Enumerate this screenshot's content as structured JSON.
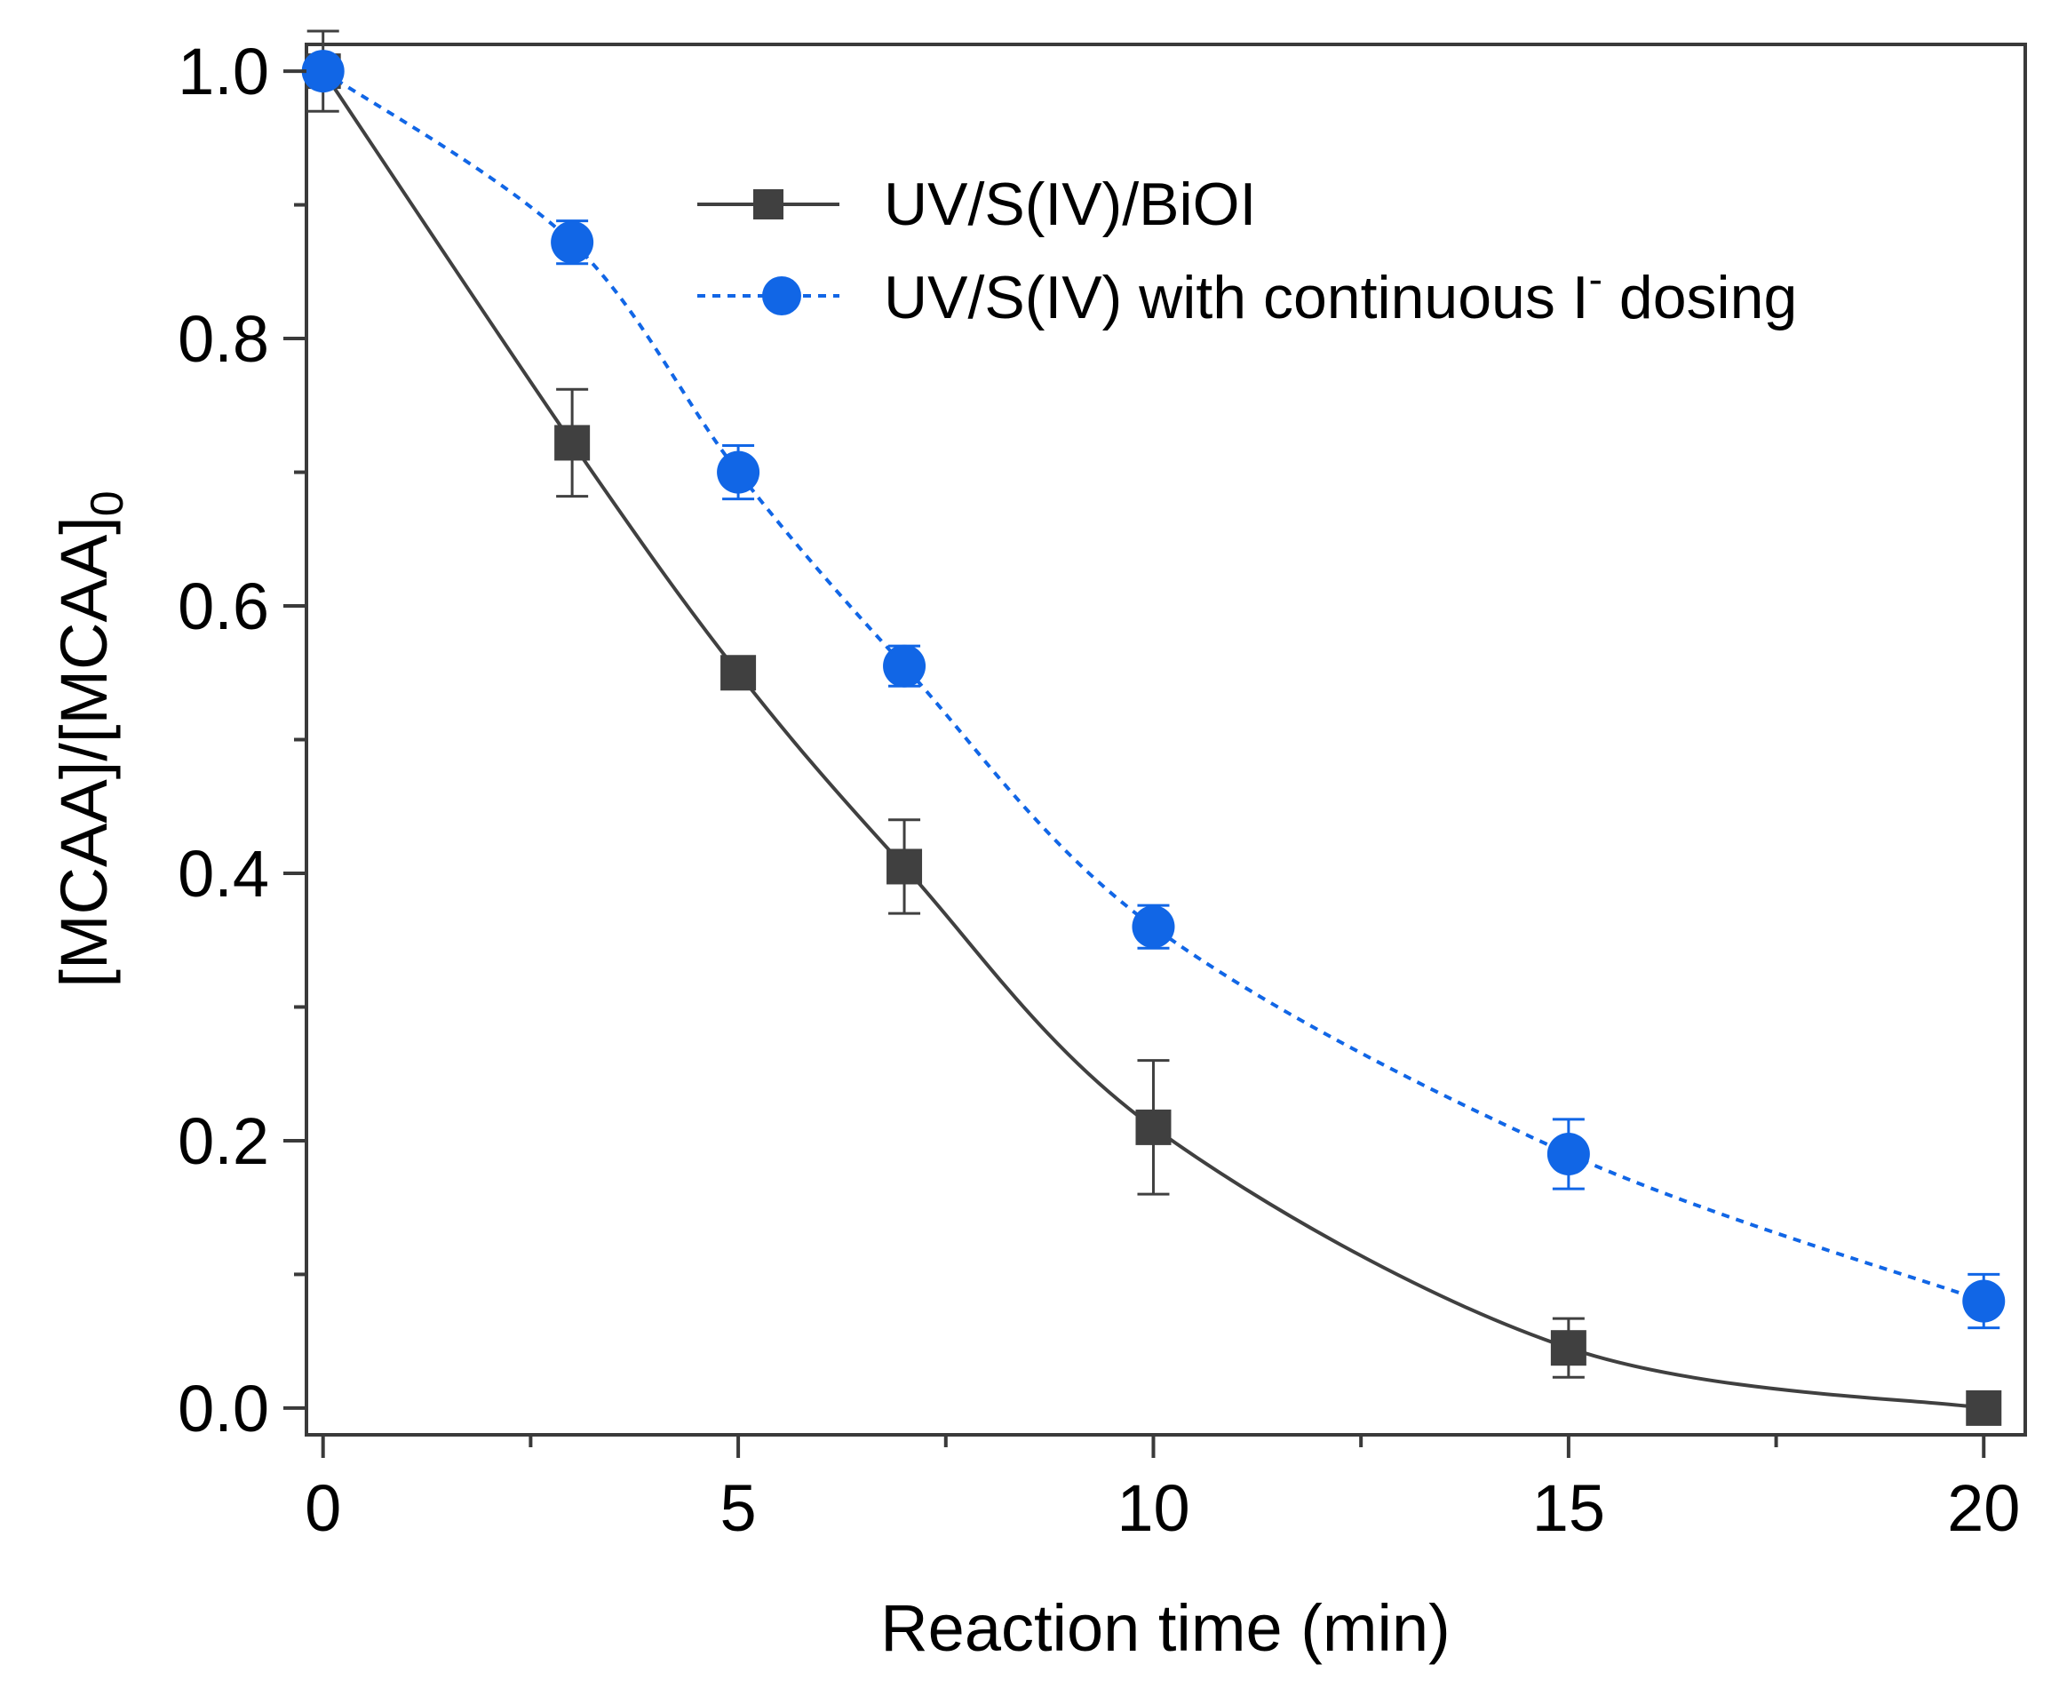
{
  "chart_data": {
    "type": "line",
    "title": "",
    "xlabel": "Reaction time (min)",
    "ylabel": {
      "main": "[MCAA]/[MCAA]",
      "subscript": "0"
    },
    "xlim": [
      -0.2,
      20.5
    ],
    "ylim": [
      -0.02,
      1.02
    ],
    "xticks": [
      0,
      5,
      10,
      15,
      20
    ],
    "xtick_labels": [
      "0",
      "5",
      "10",
      "15",
      "20"
    ],
    "yticks": [
      0.0,
      0.2,
      0.4,
      0.6,
      0.8,
      1.0
    ],
    "ytick_labels": [
      "0.0",
      "0.2",
      "0.4",
      "0.6",
      "0.8",
      "1.0"
    ],
    "grid": false,
    "legend_position": "top-right",
    "series": [
      {
        "name": "UV/S(IV)/BiOI",
        "color": "#404040",
        "marker": "square",
        "line": "solid",
        "x": [
          0,
          3,
          5,
          7,
          10,
          15,
          20
        ],
        "y": [
          1.0,
          0.722,
          0.55,
          0.405,
          0.21,
          0.045,
          0.0
        ],
        "error": [
          0.03,
          0.04,
          0.0,
          0.035,
          0.05,
          0.022,
          0.0
        ]
      },
      {
        "name": "UV/S(IV) with continuous I",
        "name_superscript": "-",
        "name_suffix": " dosing",
        "color": "#1166E6",
        "marker": "circle",
        "line": "dotted",
        "x": [
          0,
          3,
          5,
          7,
          10,
          15,
          20
        ],
        "y": [
          1.0,
          0.872,
          0.7,
          0.555,
          0.36,
          0.19,
          0.08
        ],
        "error": [
          0.0,
          0.016,
          0.02,
          0.015,
          0.016,
          0.026,
          0.02
        ]
      }
    ]
  }
}
